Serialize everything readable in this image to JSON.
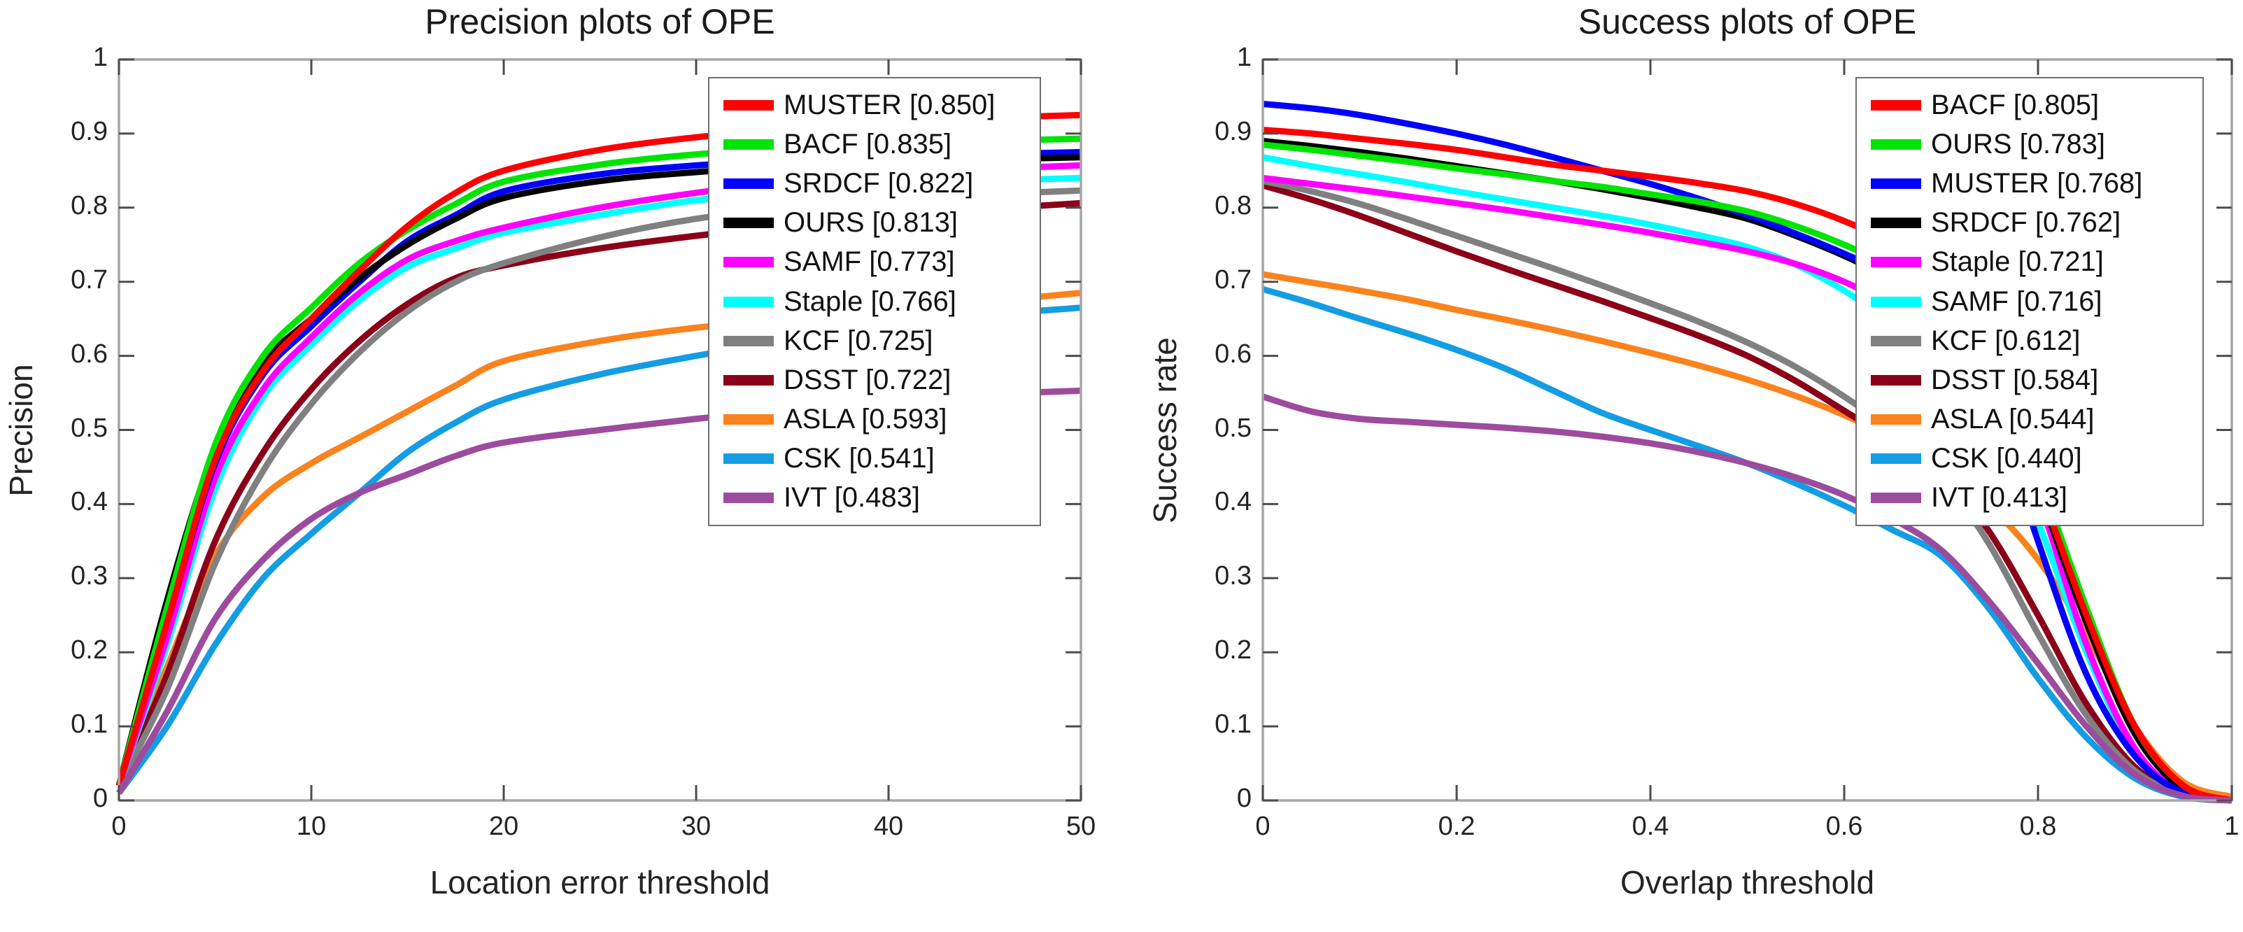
{
  "figure": {
    "background": "#ffffff",
    "axis_box_color": "#a6a6a6",
    "tick_color": "#4d4d4d",
    "text_color": "#242424"
  },
  "chart_data": [
    {
      "type": "line",
      "title": "Precision plots of OPE",
      "xlabel": "Location error threshold",
      "ylabel": "Precision",
      "xlim": [
        0,
        50
      ],
      "ylim": [
        0,
        1
      ],
      "grid": false,
      "legend_position": "upper-right",
      "xticks": [
        0,
        10,
        20,
        30,
        40,
        50
      ],
      "xtick_labels": [
        "0",
        "10",
        "20",
        "30",
        "40",
        "50"
      ],
      "yticks": [
        0,
        0.1,
        0.2,
        0.3,
        0.4,
        0.5,
        0.6,
        0.7,
        0.8,
        0.9,
        1
      ],
      "ytick_labels": [
        "0",
        "0.1",
        "0.2",
        "0.3",
        "0.4",
        "0.5",
        "0.6",
        "0.7",
        "0.8",
        "0.9",
        "1"
      ],
      "x": [
        0,
        2.5,
        5,
        7.5,
        10,
        12.5,
        15,
        17.5,
        20,
        25,
        30,
        35,
        40,
        45,
        50
      ],
      "draw_order": [
        9,
        8,
        7,
        6,
        5,
        4,
        2,
        3,
        1,
        0,
        10
      ],
      "series": [
        {
          "name": "MUSTER",
          "label": "MUSTER [0.850]",
          "score": 0.85,
          "color": "#ff0000",
          "values": [
            0.02,
            0.24,
            0.46,
            0.58,
            0.65,
            0.715,
            0.775,
            0.82,
            0.85,
            0.878,
            0.895,
            0.906,
            0.915,
            0.921,
            0.925
          ]
        },
        {
          "name": "BACF",
          "label": "BACF [0.835]",
          "score": 0.835,
          "color": "#00e400",
          "values": [
            0.02,
            0.26,
            0.48,
            0.6,
            0.665,
            0.725,
            0.77,
            0.805,
            0.835,
            0.858,
            0.872,
            0.88,
            0.886,
            0.89,
            0.893
          ]
        },
        {
          "name": "SRDCF",
          "label": "SRDCF [0.822]",
          "score": 0.822,
          "color": "#0000ff",
          "values": [
            0.02,
            0.24,
            0.455,
            0.575,
            0.64,
            0.7,
            0.755,
            0.79,
            0.822,
            0.845,
            0.857,
            0.864,
            0.869,
            0.872,
            0.875
          ]
        },
        {
          "name": "OURS",
          "label": "OURS [0.813]",
          "score": 0.813,
          "color": "#000000",
          "values": [
            0.02,
            0.27,
            0.475,
            0.59,
            0.65,
            0.705,
            0.75,
            0.785,
            0.813,
            0.836,
            0.848,
            0.856,
            0.861,
            0.865,
            0.868
          ]
        },
        {
          "name": "SAMF",
          "label": "SAMF [0.773]",
          "score": 0.773,
          "color": "#ff00ff",
          "values": [
            0.02,
            0.22,
            0.435,
            0.555,
            0.625,
            0.685,
            0.73,
            0.755,
            0.773,
            0.8,
            0.82,
            0.835,
            0.845,
            0.852,
            0.857
          ]
        },
        {
          "name": "Staple",
          "label": "Staple [0.766]",
          "score": 0.766,
          "color": "#00ffff",
          "values": [
            0.02,
            0.21,
            0.42,
            0.545,
            0.615,
            0.675,
            0.72,
            0.745,
            0.766,
            0.79,
            0.81,
            0.822,
            0.831,
            0.836,
            0.84
          ]
        },
        {
          "name": "KCF",
          "label": "KCF [0.725]",
          "score": 0.725,
          "color": "#808080",
          "values": [
            0.02,
            0.15,
            0.32,
            0.445,
            0.535,
            0.605,
            0.66,
            0.7,
            0.725,
            0.76,
            0.785,
            0.8,
            0.811,
            0.818,
            0.823
          ]
        },
        {
          "name": "DSST",
          "label": "DSST [0.722]",
          "score": 0.722,
          "color": "#8b0018",
          "values": [
            0.02,
            0.17,
            0.35,
            0.47,
            0.555,
            0.62,
            0.67,
            0.705,
            0.722,
            0.745,
            0.762,
            0.776,
            0.788,
            0.798,
            0.806
          ]
        },
        {
          "name": "ASLA",
          "label": "ASLA [0.593]",
          "score": 0.593,
          "color": "#fa831e",
          "values": [
            0.02,
            0.18,
            0.33,
            0.41,
            0.455,
            0.49,
            0.525,
            0.56,
            0.593,
            0.62,
            0.638,
            0.65,
            0.662,
            0.673,
            0.685
          ]
        },
        {
          "name": "CSK",
          "label": "CSK [0.541]",
          "score": 0.541,
          "color": "#149de2",
          "values": [
            0.01,
            0.1,
            0.21,
            0.3,
            0.36,
            0.415,
            0.47,
            0.51,
            0.541,
            0.575,
            0.6,
            0.622,
            0.641,
            0.655,
            0.665
          ]
        },
        {
          "name": "IVT",
          "label": "IVT [0.483]",
          "score": 0.483,
          "color": "#9d4b9f",
          "values": [
            0.01,
            0.12,
            0.245,
            0.325,
            0.38,
            0.415,
            0.44,
            0.465,
            0.483,
            0.5,
            0.515,
            0.528,
            0.54,
            0.548,
            0.553
          ]
        }
      ]
    },
    {
      "type": "line",
      "title": "Success plots of OPE",
      "xlabel": "Overlap threshold",
      "ylabel": "Success rate",
      "xlim": [
        0,
        1
      ],
      "ylim": [
        0,
        1
      ],
      "grid": false,
      "legend_position": "upper-right",
      "xticks": [
        0,
        0.2,
        0.4,
        0.6,
        0.8,
        1
      ],
      "xtick_labels": [
        "0",
        "0.2",
        "0.4",
        "0.6",
        "0.8",
        "1"
      ],
      "yticks": [
        0,
        0.1,
        0.2,
        0.3,
        0.4,
        0.5,
        0.6,
        0.7,
        0.8,
        0.9,
        1
      ],
      "ytick_labels": [
        "0",
        "0.1",
        "0.2",
        "0.3",
        "0.4",
        "0.5",
        "0.6",
        "0.7",
        "0.8",
        "0.9",
        "1"
      ],
      "x": [
        0,
        0.05,
        0.1,
        0.15,
        0.2,
        0.25,
        0.3,
        0.35,
        0.4,
        0.45,
        0.5,
        0.55,
        0.6,
        0.65,
        0.7,
        0.75,
        0.8,
        0.85,
        0.9,
        0.95,
        1
      ],
      "draw_order": [
        9,
        8,
        7,
        6,
        5,
        4,
        3,
        2,
        1,
        0,
        10
      ],
      "series": [
        {
          "name": "BACF",
          "label": "BACF [0.805]",
          "score": 0.805,
          "color": "#ff0000",
          "values": [
            0.905,
            0.9,
            0.893,
            0.886,
            0.878,
            0.868,
            0.858,
            0.85,
            0.842,
            0.833,
            0.822,
            0.805,
            0.782,
            0.752,
            0.715,
            0.615,
            0.43,
            0.25,
            0.1,
            0.02,
            0
          ]
        },
        {
          "name": "OURS",
          "label": "OURS [0.783]",
          "score": 0.783,
          "color": "#00e400",
          "values": [
            0.885,
            0.878,
            0.87,
            0.862,
            0.853,
            0.845,
            0.836,
            0.828,
            0.818,
            0.808,
            0.795,
            0.775,
            0.75,
            0.72,
            0.688,
            0.6,
            0.44,
            0.26,
            0.1,
            0.02,
            0
          ]
        },
        {
          "name": "MUSTER",
          "label": "MUSTER [0.768]",
          "score": 0.768,
          "color": "#0000ff",
          "values": [
            0.94,
            0.934,
            0.925,
            0.913,
            0.9,
            0.885,
            0.868,
            0.85,
            0.832,
            0.812,
            0.79,
            0.765,
            0.738,
            0.708,
            0.675,
            0.55,
            0.35,
            0.17,
            0.06,
            0.01,
            0
          ]
        },
        {
          "name": "SRDCF",
          "label": "SRDCF [0.762]",
          "score": 0.762,
          "color": "#000000",
          "values": [
            0.89,
            0.883,
            0.875,
            0.866,
            0.856,
            0.846,
            0.836,
            0.825,
            0.813,
            0.8,
            0.785,
            0.762,
            0.735,
            0.703,
            0.668,
            0.58,
            0.42,
            0.24,
            0.09,
            0.015,
            0
          ]
        },
        {
          "name": "Staple",
          "label": "Staple [0.721]",
          "score": 0.721,
          "color": "#ff00ff",
          "values": [
            0.84,
            0.832,
            0.824,
            0.815,
            0.806,
            0.797,
            0.787,
            0.777,
            0.766,
            0.754,
            0.741,
            0.724,
            0.7,
            0.668,
            0.632,
            0.56,
            0.41,
            0.21,
            0.07,
            0.01,
            0
          ]
        },
        {
          "name": "SAMF",
          "label": "SAMF [0.716]",
          "score": 0.716,
          "color": "#00ffff",
          "values": [
            0.868,
            0.856,
            0.845,
            0.834,
            0.822,
            0.811,
            0.8,
            0.789,
            0.777,
            0.763,
            0.747,
            0.723,
            0.688,
            0.643,
            0.588,
            0.505,
            0.375,
            0.2,
            0.065,
            0.01,
            0
          ]
        },
        {
          "name": "KCF",
          "label": "KCF [0.612]",
          "score": 0.612,
          "color": "#808080",
          "values": [
            0.836,
            0.822,
            0.805,
            0.784,
            0.762,
            0.74,
            0.718,
            0.695,
            0.671,
            0.646,
            0.618,
            0.585,
            0.545,
            0.498,
            0.438,
            0.345,
            0.225,
            0.115,
            0.04,
            0.008,
            0
          ]
        },
        {
          "name": "DSST",
          "label": "DSST [0.584]",
          "score": 0.584,
          "color": "#8b0018",
          "values": [
            0.83,
            0.811,
            0.789,
            0.765,
            0.741,
            0.718,
            0.696,
            0.674,
            0.651,
            0.627,
            0.6,
            0.566,
            0.526,
            0.485,
            0.442,
            0.362,
            0.25,
            0.13,
            0.045,
            0.008,
            0
          ]
        },
        {
          "name": "ASLA",
          "label": "ASLA [0.544]",
          "score": 0.544,
          "color": "#fa831e",
          "values": [
            0.71,
            0.699,
            0.688,
            0.676,
            0.662,
            0.649,
            0.635,
            0.62,
            0.604,
            0.587,
            0.568,
            0.546,
            0.52,
            0.488,
            0.45,
            0.398,
            0.325,
            0.225,
            0.1,
            0.025,
            0.005
          ]
        },
        {
          "name": "CSK",
          "label": "CSK [0.440]",
          "score": 0.44,
          "color": "#149de2",
          "values": [
            0.69,
            0.671,
            0.65,
            0.63,
            0.608,
            0.583,
            0.553,
            0.523,
            0.5,
            0.478,
            0.455,
            0.428,
            0.398,
            0.365,
            0.33,
            0.258,
            0.165,
            0.085,
            0.03,
            0.005,
            0
          ]
        },
        {
          "name": "IVT",
          "label": "IVT [0.413]",
          "score": 0.413,
          "color": "#9d4b9f",
          "values": [
            0.545,
            0.525,
            0.515,
            0.511,
            0.507,
            0.503,
            0.498,
            0.491,
            0.482,
            0.47,
            0.455,
            0.436,
            0.412,
            0.38,
            0.338,
            0.268,
            0.185,
            0.1,
            0.035,
            0.006,
            0
          ]
        }
      ]
    }
  ]
}
